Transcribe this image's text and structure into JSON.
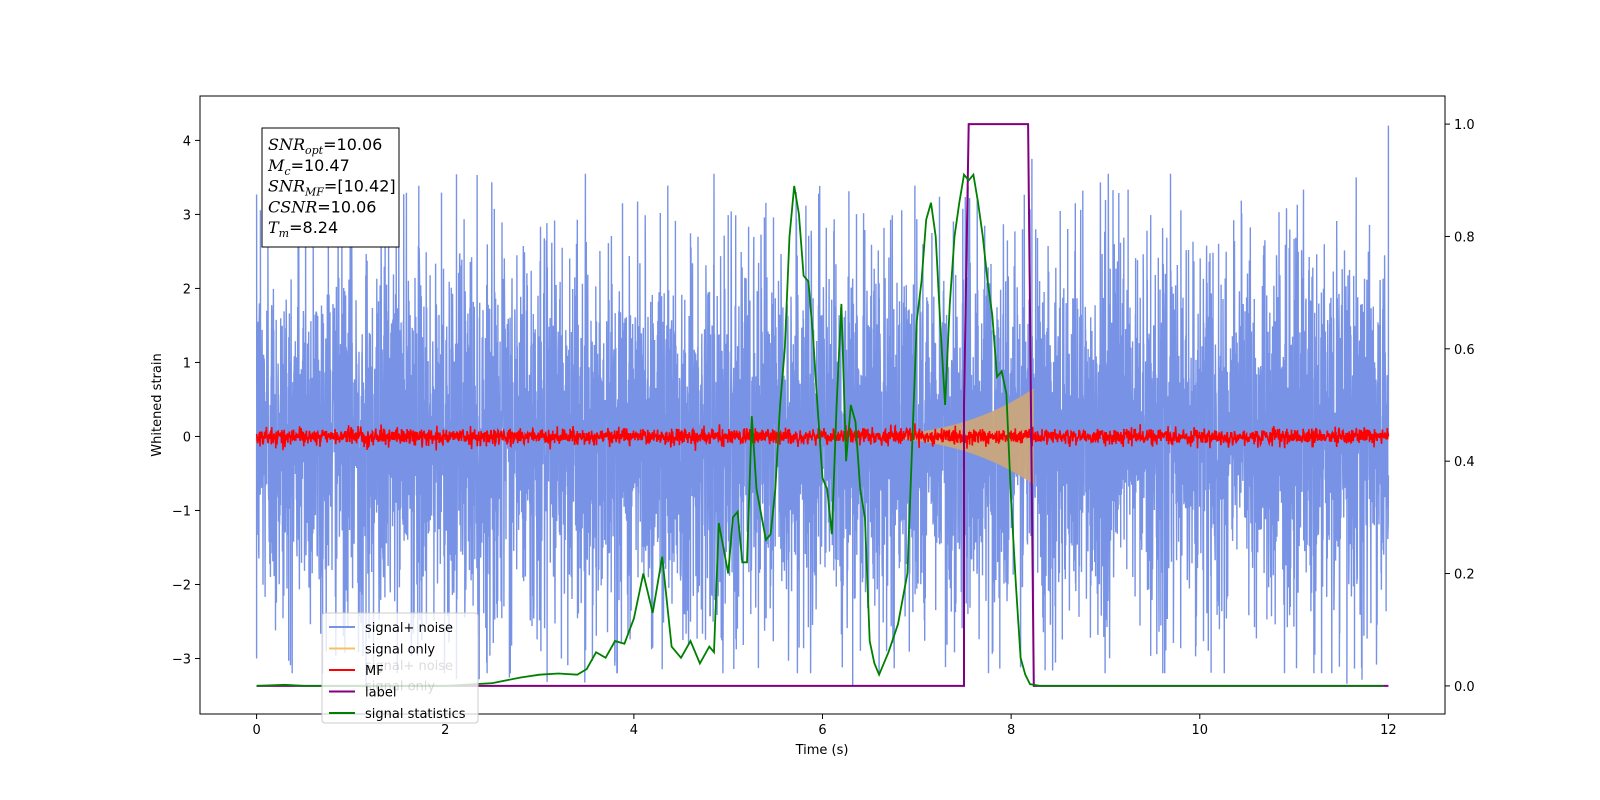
{
  "chart_data": {
    "type": "line",
    "xlabel": "Time (s)",
    "ylabel_left": "Whitened strain",
    "ylabel_right": "",
    "xlim": [
      -0.6,
      12.6
    ],
    "ylim_left": [
      -3.75,
      4.6
    ],
    "ylim_right": [
      -0.05,
      1.05
    ],
    "x_ticks": [
      0,
      2,
      4,
      6,
      8,
      10,
      12
    ],
    "y_ticks_left": [
      -3,
      -2,
      -1,
      0,
      1,
      2,
      3,
      4
    ],
    "y_ticks_right": [
      0.0,
      0.2,
      0.4,
      0.6,
      0.8,
      1.0
    ],
    "grid": false,
    "legend_placement": "lower-left",
    "legend": [
      "signal+ noise",
      "signal only",
      "MF",
      "label",
      "signal statistics"
    ],
    "legend_ghost": [
      "signal+ noise",
      "signal only"
    ],
    "colors": {
      "signal_noise": "#7893e6",
      "signal_only": "#f5c168",
      "signal_fill": "#c9a57c",
      "mf": "#ff0000",
      "label": "#800080",
      "statistics": "#008000"
    },
    "annotation": [
      {
        "base": "SNR",
        "sub": "opt",
        "value": "=10.06"
      },
      {
        "base": "M",
        "sub": "c",
        "value": "=10.47"
      },
      {
        "base": "SNR",
        "sub": "MF",
        "value": "=[10.42]"
      },
      {
        "base": "CSNR",
        "sub": "",
        "value": "=10.06"
      },
      {
        "base": "T",
        "sub": "m",
        "value": "=8.24"
      }
    ],
    "series": [
      {
        "name": "signal+ noise",
        "axis": "left",
        "kind": "noise",
        "x_range": [
          0,
          12
        ],
        "amplitude": 1.9,
        "notable_peaks": [
          [
            0.0,
            -3.0
          ],
          [
            12.0,
            4.2
          ],
          [
            8.22,
            3.75
          ],
          [
            6.32,
            -3.38
          ]
        ]
      },
      {
        "name": "signal only",
        "axis": "left",
        "kind": "chirp",
        "x_range": [
          6.0,
          8.24
        ],
        "peak_amplitude": 0.65
      },
      {
        "name": "MF",
        "axis": "left",
        "kind": "noise",
        "x_range": [
          0,
          12
        ],
        "amplitude": 0.12
      },
      {
        "name": "label",
        "axis": "right",
        "x": [
          0,
          7.5,
          7.5,
          7.55,
          8.18,
          8.24,
          12
        ],
        "y": [
          0,
          0,
          0.5,
          1.0,
          1.0,
          0,
          0
        ]
      },
      {
        "name": "signal statistics",
        "axis": "right",
        "x": [
          0,
          0.3,
          0.5,
          1.0,
          1.5,
          2.0,
          2.5,
          2.8,
          3.0,
          3.2,
          3.4,
          3.5,
          3.6,
          3.7,
          3.8,
          3.9,
          4.0,
          4.1,
          4.2,
          4.3,
          4.4,
          4.5,
          4.6,
          4.7,
          4.8,
          4.85,
          4.9,
          5.0,
          5.05,
          5.1,
          5.15,
          5.2,
          5.25,
          5.3,
          5.4,
          5.45,
          5.5,
          5.55,
          5.6,
          5.65,
          5.7,
          5.75,
          5.8,
          5.85,
          5.9,
          5.95,
          6.0,
          6.05,
          6.1,
          6.15,
          6.2,
          6.25,
          6.3,
          6.35,
          6.4,
          6.45,
          6.5,
          6.55,
          6.6,
          6.7,
          6.8,
          6.9,
          7.0,
          7.05,
          7.1,
          7.15,
          7.2,
          7.25,
          7.3,
          7.35,
          7.4,
          7.45,
          7.5,
          7.55,
          7.6,
          7.65,
          7.7,
          7.75,
          7.8,
          7.85,
          7.9,
          7.95,
          8.0,
          8.05,
          8.1,
          8.15,
          8.2,
          8.24,
          8.3,
          8.35,
          8.4,
          8.5,
          8.6,
          9.0,
          10.0,
          11.0,
          11.95
        ],
        "y": [
          0.0,
          0.002,
          0.0,
          0.0,
          0.0,
          0.0,
          0.005,
          0.015,
          0.02,
          0.022,
          0.02,
          0.03,
          0.06,
          0.05,
          0.08,
          0.075,
          0.12,
          0.2,
          0.13,
          0.23,
          0.07,
          0.05,
          0.08,
          0.04,
          0.07,
          0.06,
          0.29,
          0.2,
          0.3,
          0.31,
          0.22,
          0.22,
          0.48,
          0.35,
          0.26,
          0.27,
          0.35,
          0.5,
          0.6,
          0.8,
          0.89,
          0.84,
          0.73,
          0.72,
          0.62,
          0.49,
          0.37,
          0.35,
          0.27,
          0.5,
          0.68,
          0.4,
          0.5,
          0.47,
          0.35,
          0.3,
          0.08,
          0.04,
          0.02,
          0.06,
          0.11,
          0.2,
          0.65,
          0.72,
          0.83,
          0.86,
          0.8,
          0.64,
          0.5,
          0.68,
          0.8,
          0.86,
          0.91,
          0.9,
          0.91,
          0.86,
          0.8,
          0.72,
          0.66,
          0.55,
          0.56,
          0.52,
          0.33,
          0.18,
          0.05,
          0.02,
          0.003,
          0.002,
          0.0,
          0.0,
          0.0,
          0.0,
          0.0,
          0.0,
          0.0,
          0.0,
          0.0
        ]
      }
    ]
  }
}
